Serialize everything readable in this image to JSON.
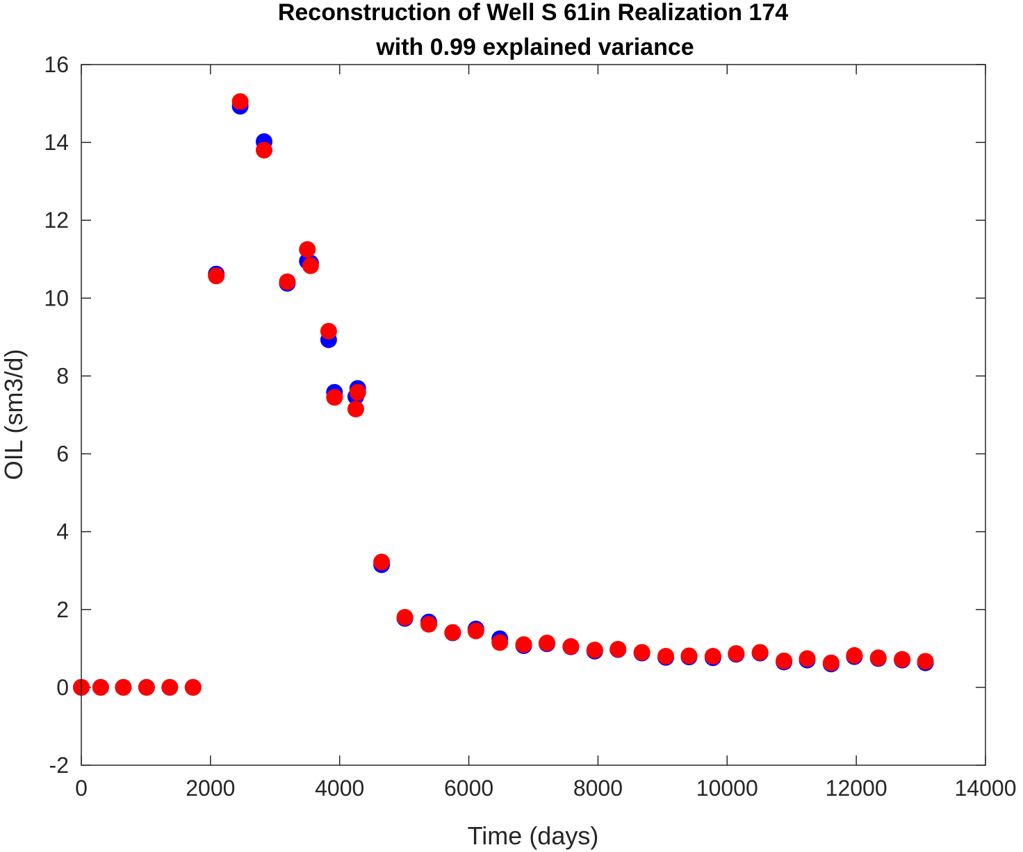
{
  "chart_data": {
    "type": "scatter",
    "title": "Reconstruction of Well S 61in Realization 174",
    "subtitle": "with 0.99 explained variance",
    "xlabel": "Time (days)",
    "ylabel": "OIL (sm3/d)",
    "xlim": [
      0,
      14000
    ],
    "ylim": [
      -2,
      16
    ],
    "xticks": [
      0,
      2000,
      4000,
      6000,
      8000,
      10000,
      12000,
      14000
    ],
    "yticks": [
      -2,
      0,
      2,
      4,
      6,
      8,
      10,
      12,
      14,
      16
    ],
    "grid": false,
    "legend": "none",
    "series": [
      {
        "color": "#0000ff",
        "points": [
          [
            0,
            0
          ],
          [
            300,
            0
          ],
          [
            650,
            0
          ],
          [
            1010,
            0
          ],
          [
            1370,
            0
          ],
          [
            1730,
            0
          ],
          [
            2090,
            10.62
          ],
          [
            2460,
            14.93
          ],
          [
            2830,
            14.02
          ],
          [
            3190,
            10.38
          ],
          [
            3500,
            10.95
          ],
          [
            3550,
            10.9
          ],
          [
            3830,
            8.93
          ],
          [
            3920,
            7.58
          ],
          [
            4250,
            7.47
          ],
          [
            4280,
            7.68
          ],
          [
            4650,
            3.15
          ],
          [
            5010,
            1.77
          ],
          [
            5380,
            1.68
          ],
          [
            5750,
            1.4
          ],
          [
            6110,
            1.5
          ],
          [
            6480,
            1.25
          ],
          [
            6850,
            1.07
          ],
          [
            7210,
            1.12
          ],
          [
            7580,
            1.04
          ],
          [
            7950,
            0.93
          ],
          [
            8310,
            0.97
          ],
          [
            8680,
            0.88
          ],
          [
            9050,
            0.77
          ],
          [
            9410,
            0.78
          ],
          [
            9780,
            0.76
          ],
          [
            10140,
            0.85
          ],
          [
            10510,
            0.88
          ],
          [
            10880,
            0.65
          ],
          [
            11240,
            0.7
          ],
          [
            11610,
            0.6
          ],
          [
            11970,
            0.79
          ],
          [
            12340,
            0.74
          ],
          [
            12710,
            0.7
          ],
          [
            13070,
            0.63
          ]
        ]
      },
      {
        "color": "#ff0000",
        "points": [
          [
            0,
            0
          ],
          [
            300,
            0
          ],
          [
            650,
            0
          ],
          [
            1010,
            0
          ],
          [
            1370,
            0
          ],
          [
            1730,
            0
          ],
          [
            2090,
            10.57
          ],
          [
            2460,
            15.05
          ],
          [
            2830,
            13.8
          ],
          [
            3190,
            10.42
          ],
          [
            3500,
            11.25
          ],
          [
            3550,
            10.83
          ],
          [
            3830,
            9.15
          ],
          [
            3920,
            7.45
          ],
          [
            4250,
            7.15
          ],
          [
            4280,
            7.58
          ],
          [
            4650,
            3.22
          ],
          [
            5010,
            1.8
          ],
          [
            5380,
            1.62
          ],
          [
            5750,
            1.41
          ],
          [
            6110,
            1.45
          ],
          [
            6480,
            1.15
          ],
          [
            6850,
            1.1
          ],
          [
            7210,
            1.14
          ],
          [
            7580,
            1.05
          ],
          [
            7950,
            0.96
          ],
          [
            8310,
            0.98
          ],
          [
            8680,
            0.9
          ],
          [
            9050,
            0.8
          ],
          [
            9410,
            0.81
          ],
          [
            9780,
            0.8
          ],
          [
            10140,
            0.87
          ],
          [
            10510,
            0.9
          ],
          [
            10880,
            0.68
          ],
          [
            11240,
            0.74
          ],
          [
            11610,
            0.63
          ],
          [
            11970,
            0.82
          ],
          [
            12340,
            0.76
          ],
          [
            12710,
            0.72
          ],
          [
            13070,
            0.67
          ]
        ]
      }
    ]
  }
}
